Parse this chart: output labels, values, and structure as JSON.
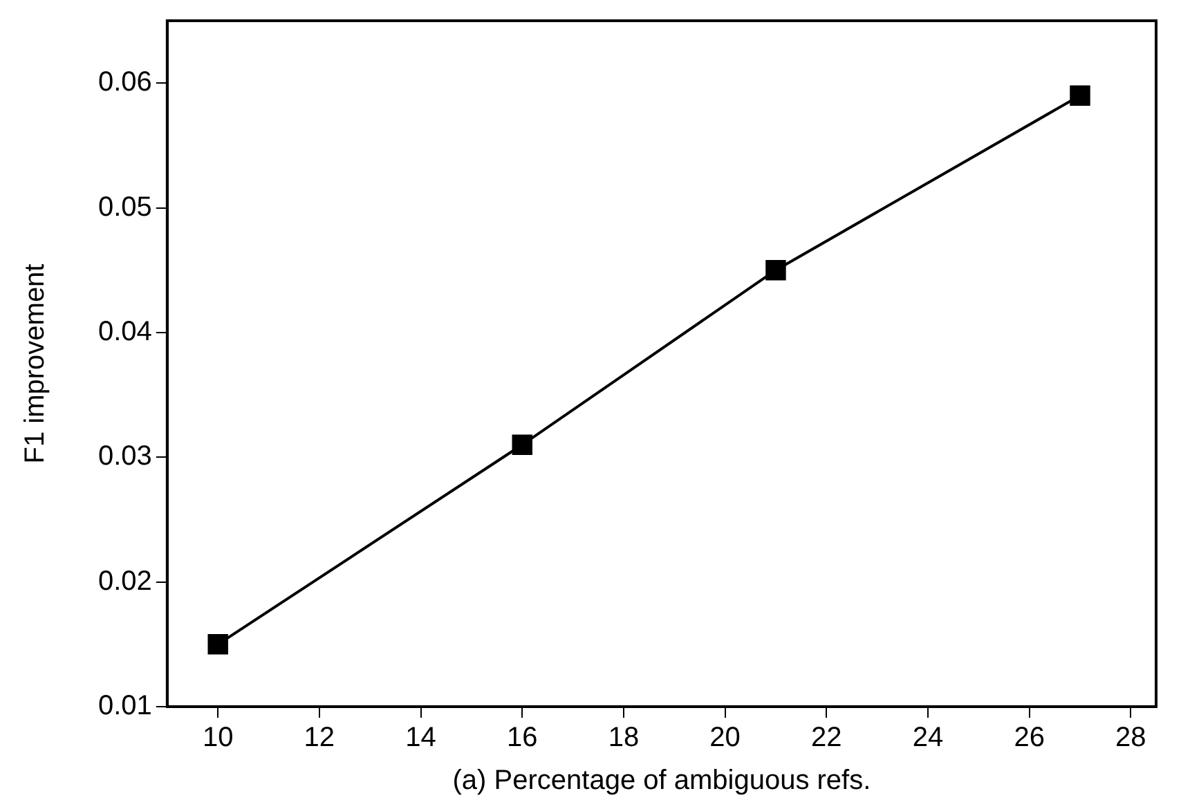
{
  "chart_data": {
    "type": "line",
    "xlabel": "(a) Percentage of ambiguous refs.",
    "ylabel": "F1 improvement",
    "x": [
      10,
      16,
      21,
      27
    ],
    "series": [
      {
        "color": "#000000",
        "values": [
          0.015,
          0.031,
          0.045,
          0.059
        ]
      }
    ],
    "xlim": [
      9,
      28.5
    ],
    "xticks": [
      10,
      12,
      14,
      16,
      18,
      20,
      22,
      24,
      26,
      28
    ],
    "ylim": [
      0.01,
      0.065
    ],
    "yticks": [
      0.01,
      0.02,
      0.03,
      0.04,
      0.05,
      0.06
    ],
    "grid": false,
    "legend": false,
    "marker": "square",
    "line_style": "solid"
  }
}
